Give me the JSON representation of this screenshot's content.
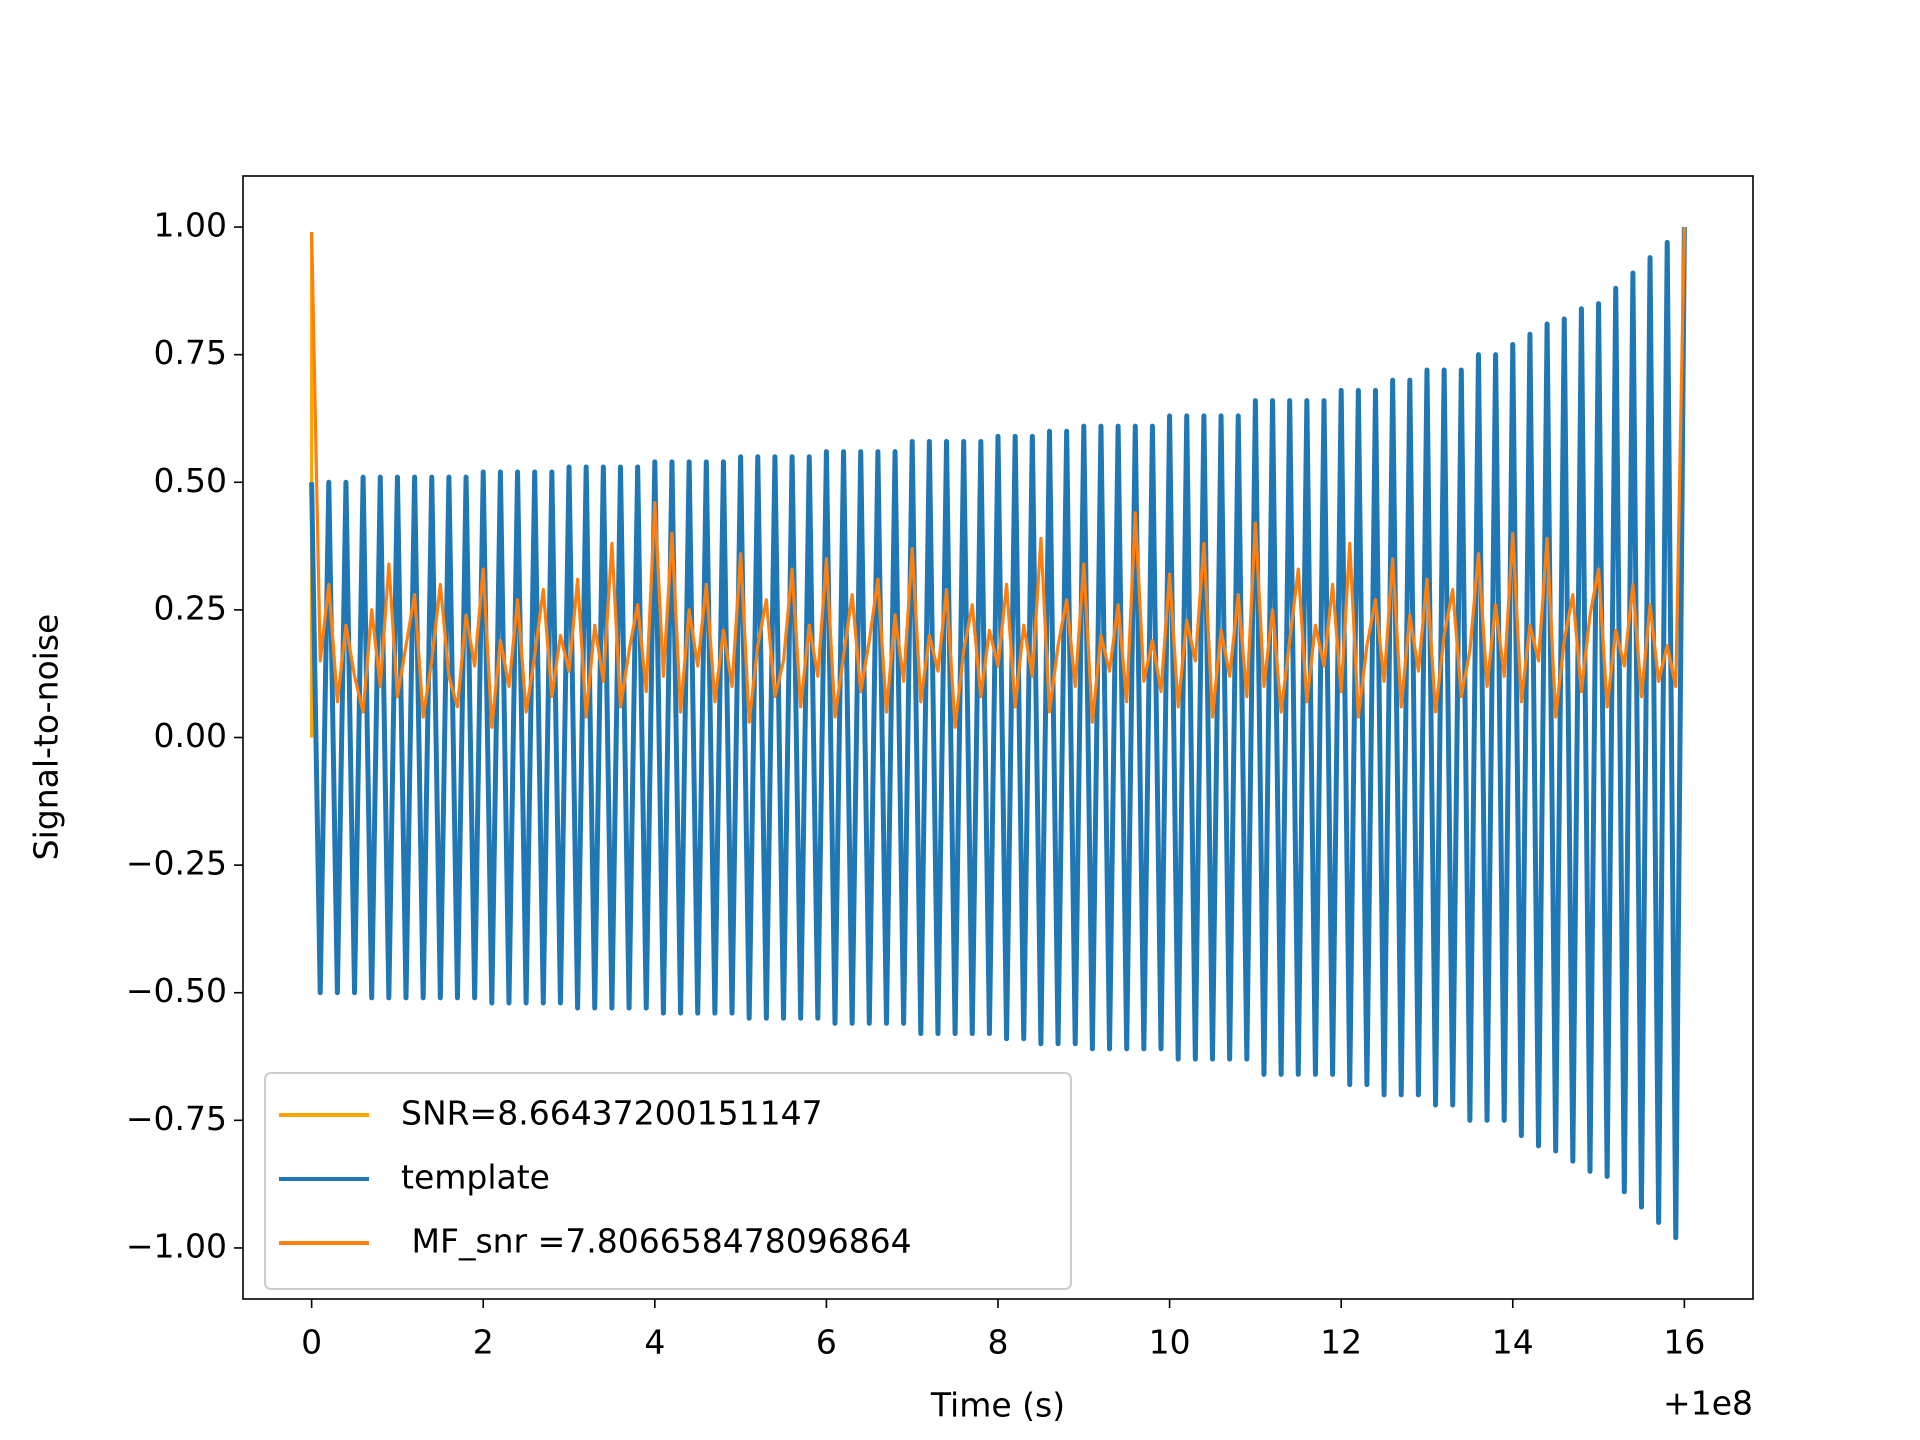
{
  "chart_data": {
    "type": "line",
    "xlabel": "Time (s)",
    "ylabel": "Signal-to-noise",
    "x_offset_text": "+1e8",
    "xlim": [
      -0.8,
      16.8
    ],
    "ylim": [
      -1.1,
      1.1
    ],
    "xticks": [
      0,
      2,
      4,
      6,
      8,
      10,
      12,
      14,
      16
    ],
    "yticks": [
      {
        "value": 1.0,
        "label": "1.00"
      },
      0.75,
      {
        "value": 0.5,
        "label": "0.50"
      },
      0.25,
      {
        "value": 0,
        "label": "0.00"
      },
      {
        "value": -0.25,
        "label": "−0.25"
      },
      {
        "value": -0.5,
        "label": "−0.50"
      },
      {
        "value": -0.75,
        "label": "−0.75"
      },
      {
        "value": -1.0,
        "label": "−1.00"
      }
    ],
    "legend": "lower left",
    "x": [
      0,
      0.1,
      0.2,
      0.3,
      0.4,
      0.5,
      0.6,
      0.7,
      0.8,
      0.9,
      1,
      1.1,
      1.2,
      1.3,
      1.4,
      1.5,
      1.6,
      1.7,
      1.8,
      1.9,
      2,
      2.1,
      2.2,
      2.3,
      2.4,
      2.5,
      2.6,
      2.7,
      2.8,
      2.9,
      3,
      3.1,
      3.2,
      3.3,
      3.4,
      3.5,
      3.6,
      3.7,
      3.8,
      3.9,
      4,
      4.1,
      4.2,
      4.3,
      4.4,
      4.5,
      4.6,
      4.7,
      4.8,
      4.9,
      5,
      5.1,
      5.2,
      5.3,
      5.4,
      5.5,
      5.6,
      5.7,
      5.8,
      5.9,
      6,
      6.1,
      6.2,
      6.3,
      6.4,
      6.5,
      6.6,
      6.7,
      6.8,
      6.9,
      7,
      7.1,
      7.2,
      7.3,
      7.4,
      7.5,
      7.6,
      7.7,
      7.8,
      7.9,
      8,
      8.1,
      8.2,
      8.3,
      8.4,
      8.5,
      8.6,
      8.7,
      8.8,
      8.9,
      9,
      9.1,
      9.2,
      9.3,
      9.4,
      9.5,
      9.6,
      9.7,
      9.8,
      9.9,
      10,
      10.1,
      10.2,
      10.3,
      10.4,
      10.5,
      10.6,
      10.7,
      10.8,
      10.9,
      11,
      11.1,
      11.2,
      11.3,
      11.4,
      11.5,
      11.6,
      11.7,
      11.8,
      11.9,
      12,
      12.1,
      12.2,
      12.3,
      12.4,
      12.5,
      12.6,
      12.7,
      12.8,
      12.9,
      13,
      13.1,
      13.2,
      13.3,
      13.4,
      13.5,
      13.6,
      13.7,
      13.8,
      13.9,
      14,
      14.1,
      14.2,
      14.3,
      14.4,
      14.5,
      14.6,
      14.7,
      14.8,
      14.9,
      15,
      15.1,
      15.2,
      15.3,
      15.4,
      15.5,
      15.6,
      15.7,
      15.8,
      15.9,
      16
    ],
    "series": [
      {
        "name": "SNR=8.66437200151147",
        "color": "#ffa500",
        "x": [
          0,
          0
        ],
        "values": [
          0,
          0.99
        ]
      },
      {
        "name": "template",
        "color": "#1f77b4",
        "values": [
          0.5,
          -0.5,
          0.5,
          -0.5,
          0.5,
          -0.5,
          0.51,
          -0.51,
          0.51,
          -0.51,
          0.51,
          -0.51,
          0.51,
          -0.51,
          0.51,
          -0.51,
          0.51,
          -0.51,
          0.51,
          -0.51,
          0.52,
          -0.52,
          0.52,
          -0.52,
          0.52,
          -0.52,
          0.52,
          -0.52,
          0.52,
          -0.52,
          0.53,
          -0.53,
          0.53,
          -0.53,
          0.53,
          -0.53,
          0.53,
          -0.53,
          0.53,
          -0.53,
          0.54,
          -0.54,
          0.54,
          -0.54,
          0.54,
          -0.54,
          0.54,
          -0.54,
          0.54,
          -0.54,
          0.55,
          -0.55,
          0.55,
          -0.55,
          0.55,
          -0.55,
          0.55,
          -0.55,
          0.55,
          -0.55,
          0.56,
          -0.56,
          0.56,
          -0.56,
          0.56,
          -0.56,
          0.56,
          -0.56,
          0.56,
          -0.56,
          0.58,
          -0.58,
          0.58,
          -0.58,
          0.58,
          -0.58,
          0.58,
          -0.58,
          0.58,
          -0.58,
          0.59,
          -0.59,
          0.59,
          -0.59,
          0.59,
          -0.6,
          0.6,
          -0.6,
          0.6,
          -0.6,
          0.61,
          -0.61,
          0.61,
          -0.61,
          0.61,
          -0.61,
          0.61,
          -0.61,
          0.61,
          -0.61,
          0.63,
          -0.63,
          0.63,
          -0.63,
          0.63,
          -0.63,
          0.63,
          -0.63,
          0.63,
          -0.63,
          0.66,
          -0.66,
          0.66,
          -0.66,
          0.66,
          -0.66,
          0.66,
          -0.66,
          0.66,
          -0.66,
          0.68,
          -0.68,
          0.68,
          -0.68,
          0.68,
          -0.7,
          0.7,
          -0.7,
          0.7,
          -0.7,
          0.72,
          -0.72,
          0.72,
          -0.72,
          0.72,
          -0.75,
          0.75,
          -0.75,
          0.75,
          -0.75,
          0.77,
          -0.78,
          0.79,
          -0.8,
          0.81,
          -0.81,
          0.82,
          -0.83,
          0.84,
          -0.85,
          0.85,
          -0.86,
          0.88,
          -0.89,
          0.91,
          -0.92,
          0.94,
          -0.95,
          0.97,
          -0.98,
          1.0
        ]
      },
      {
        "name": " MF_snr =7.806658478096864",
        "color": "#ff7f0e",
        "values": [
          0.99,
          0.15,
          0.3,
          0.07,
          0.22,
          0.12,
          0.05,
          0.25,
          0.1,
          0.34,
          0.08,
          0.18,
          0.28,
          0.04,
          0.15,
          0.3,
          0.12,
          0.06,
          0.24,
          0.14,
          0.33,
          0.02,
          0.19,
          0.1,
          0.27,
          0.05,
          0.16,
          0.29,
          0.08,
          0.2,
          0.13,
          0.31,
          0.04,
          0.22,
          0.11,
          0.38,
          0.06,
          0.17,
          0.26,
          0.09,
          0.46,
          0.12,
          0.4,
          0.05,
          0.25,
          0.14,
          0.3,
          0.07,
          0.21,
          0.1,
          0.36,
          0.03,
          0.18,
          0.27,
          0.08,
          0.15,
          0.33,
          0.06,
          0.22,
          0.12,
          0.35,
          0.04,
          0.16,
          0.28,
          0.09,
          0.19,
          0.31,
          0.05,
          0.24,
          0.11,
          0.37,
          0.07,
          0.2,
          0.13,
          0.29,
          0.02,
          0.17,
          0.26,
          0.08,
          0.21,
          0.14,
          0.3,
          0.06,
          0.22,
          0.12,
          0.39,
          0.05,
          0.18,
          0.27,
          0.1,
          0.34,
          0.03,
          0.2,
          0.13,
          0.26,
          0.07,
          0.44,
          0.11,
          0.19,
          0.09,
          0.32,
          0.06,
          0.23,
          0.15,
          0.38,
          0.04,
          0.21,
          0.12,
          0.28,
          0.08,
          0.42,
          0.1,
          0.25,
          0.05,
          0.19,
          0.33,
          0.07,
          0.22,
          0.14,
          0.3,
          0.09,
          0.38,
          0.04,
          0.18,
          0.27,
          0.11,
          0.35,
          0.06,
          0.24,
          0.13,
          0.31,
          0.05,
          0.2,
          0.29,
          0.08,
          0.17,
          0.36,
          0.1,
          0.26,
          0.12,
          0.4,
          0.07,
          0.22,
          0.15,
          0.39,
          0.04,
          0.19,
          0.28,
          0.09,
          0.24,
          0.33,
          0.06,
          0.21,
          0.14,
          0.3,
          0.08,
          0.26,
          0.11,
          0.18,
          0.1,
          1.0
        ]
      }
    ]
  }
}
